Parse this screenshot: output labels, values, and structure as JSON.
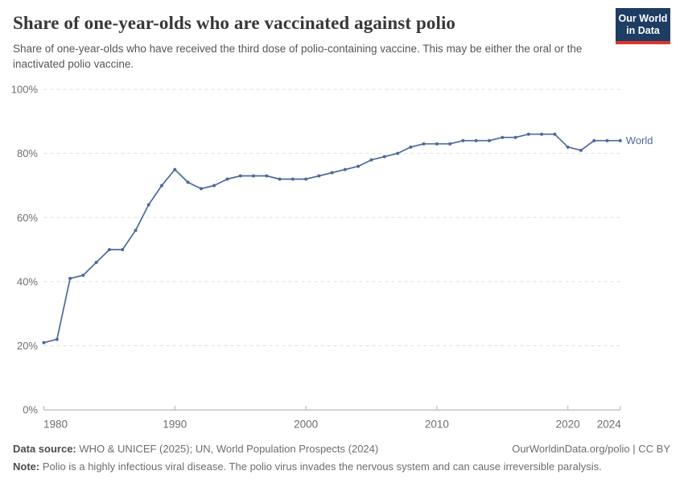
{
  "header": {
    "title": "Share of one-year-olds who are vaccinated against polio",
    "subtitle": "Share of one-year-olds who have received the third dose of polio-containing vaccine. This may be either the oral or the inactivated polio vaccine.",
    "logo": {
      "line1": "Our World",
      "line2": "in Data",
      "bg_color": "#1d3d63",
      "accent_color": "#e0342e"
    }
  },
  "chart_data": {
    "type": "line",
    "title": "Share of one-year-olds who are vaccinated against polio",
    "x": [
      1980,
      1981,
      1982,
      1983,
      1984,
      1985,
      1986,
      1987,
      1988,
      1989,
      1990,
      1991,
      1992,
      1993,
      1994,
      1995,
      1996,
      1997,
      1998,
      1999,
      2000,
      2001,
      2002,
      2003,
      2004,
      2005,
      2006,
      2007,
      2008,
      2009,
      2010,
      2011,
      2012,
      2013,
      2014,
      2015,
      2016,
      2017,
      2018,
      2019,
      2020,
      2021,
      2022,
      2023,
      2024
    ],
    "series": [
      {
        "name": "World",
        "color": "#4C6A9C",
        "values": [
          21,
          22,
          41,
          42,
          46,
          50,
          50,
          56,
          64,
          70,
          75,
          71,
          69,
          70,
          72,
          73,
          73,
          73,
          72,
          72,
          72,
          73,
          74,
          75,
          76,
          78,
          79,
          80,
          82,
          83,
          83,
          83,
          84,
          84,
          84,
          85,
          85,
          86,
          86,
          86,
          82,
          81,
          84,
          84,
          84
        ]
      }
    ],
    "xlabel": "",
    "ylabel": "",
    "ylim": [
      0,
      100
    ],
    "yticks": [
      0,
      20,
      40,
      60,
      80,
      100
    ],
    "ytick_suffix": "%",
    "xticks": [
      1980,
      1990,
      2000,
      2010,
      2020,
      2024
    ],
    "grid": "horizontal-dashed",
    "legend": "end-of-line-label",
    "colors": {
      "grid": "#dedede",
      "axis": "#a9a9a9",
      "tick": "#b0b0b0",
      "axis_label": "#6e6e6e"
    }
  },
  "footer": {
    "data_source_label": "Data source:",
    "data_source_value": "WHO & UNICEF (2025); UN, World Population Prospects (2024)",
    "attribution": "OurWorldinData.org/polio | CC BY",
    "note_label": "Note:",
    "note_value": "Polio is a highly infectious viral disease. The polio virus invades the nervous system and can cause irreversible paralysis."
  }
}
